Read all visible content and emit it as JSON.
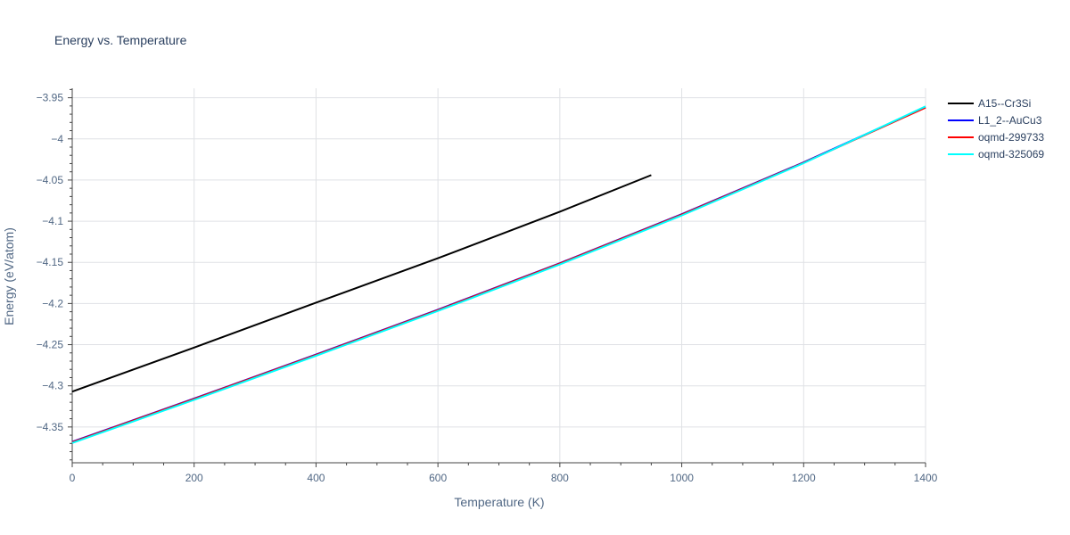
{
  "chart_data": {
    "type": "line",
    "title": "Energy vs. Temperature",
    "xlabel": "Temperature (K)",
    "ylabel": "Energy (eV/atom)",
    "xlim": [
      0,
      1400
    ],
    "ylim": [
      -4.3935,
      -3.9385
    ],
    "x_ticks": [
      0,
      200,
      400,
      600,
      800,
      1000,
      1200,
      1400
    ],
    "x_tick_labels": [
      "0",
      "200",
      "400",
      "600",
      "800",
      "1000",
      "1200",
      "1400"
    ],
    "y_ticks": [
      -4.35,
      -4.3,
      -4.25,
      -4.2,
      -4.15,
      -4.1,
      -4.05,
      -4.0,
      -3.95
    ],
    "y_tick_labels": [
      "−4.35",
      "−4.3",
      "−4.25",
      "−4.2",
      "−4.15",
      "−4.1",
      "−4.05",
      "−4",
      "−3.95"
    ],
    "grid": true,
    "legend_position": "top-right",
    "series": [
      {
        "name": "A15--Cr3Si",
        "color": "#000000",
        "x": [
          0,
          200,
          400,
          600,
          800,
          950
        ],
        "y": [
          -4.307,
          -4.2535,
          -4.199,
          -4.145,
          -4.0885,
          -4.044
        ]
      },
      {
        "name": "L1_2--AuCu3",
        "color": "#0000ff",
        "x": [
          0,
          200,
          400,
          600,
          800,
          1000,
          1200,
          1400
        ],
        "y": [
          -4.368,
          -4.3155,
          -4.262,
          -4.2075,
          -4.151,
          -4.0915,
          -4.0285,
          -3.9615
        ]
      },
      {
        "name": "oqmd-299733",
        "color": "#ff0000",
        "x": [
          0,
          200,
          400,
          600,
          800,
          1000,
          1200,
          1400
        ],
        "y": [
          -4.3685,
          -4.316,
          -4.2625,
          -4.208,
          -4.1515,
          -4.092,
          -4.029,
          -3.962
        ]
      },
      {
        "name": "oqmd-325069",
        "color": "#00ffff",
        "x": [
          0,
          200,
          400,
          600,
          800,
          1000,
          1200,
          1400
        ],
        "y": [
          -4.3695,
          -4.317,
          -4.2635,
          -4.209,
          -4.1525,
          -4.093,
          -4.0295,
          -3.9605
        ]
      }
    ]
  }
}
